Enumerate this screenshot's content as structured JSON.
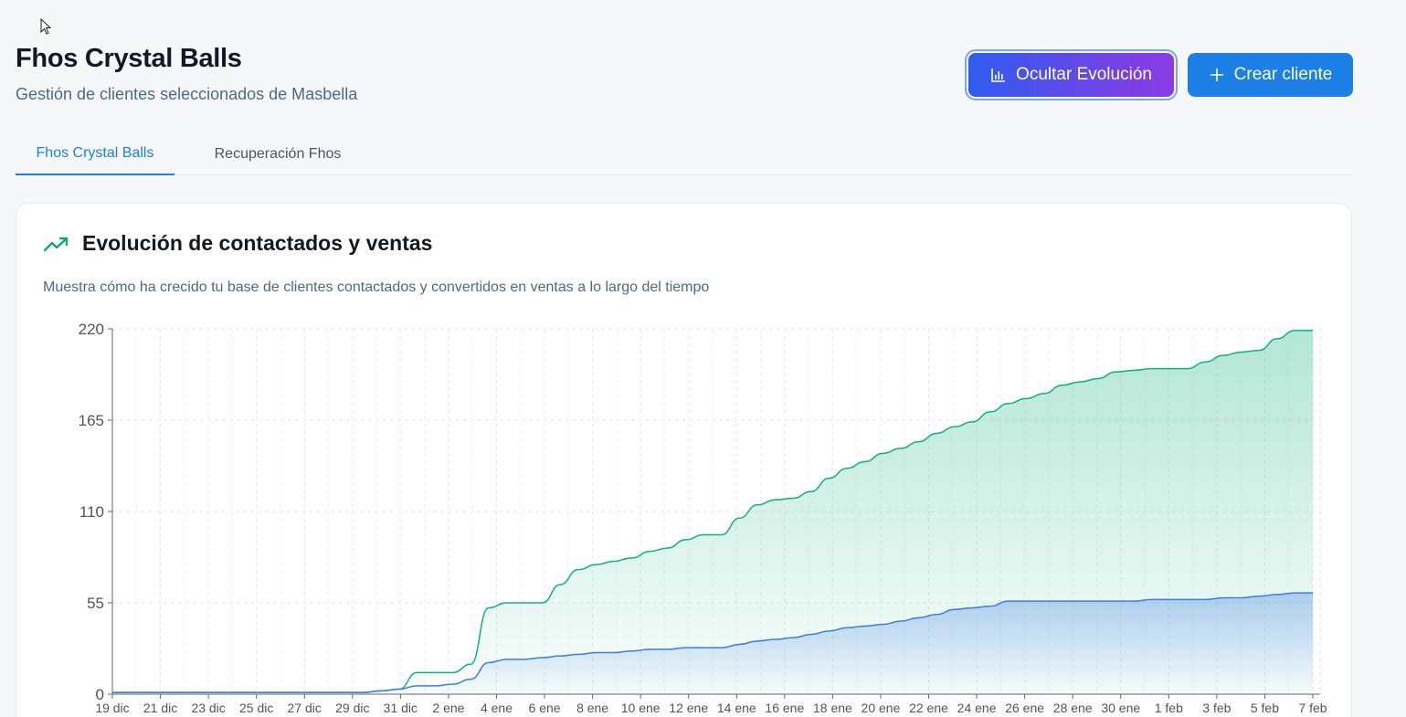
{
  "header": {
    "title": "Fhos Crystal Balls",
    "subtitle": "Gestión de clientes seleccionados de Masbella"
  },
  "actions": {
    "toggle_evolution_label": "Ocultar Evolución",
    "toggle_evolution_icon": "bar-chart-icon",
    "create_client_label": "Crear cliente",
    "create_client_icon": "plus-icon"
  },
  "tabs": [
    {
      "label": "Fhos Crystal Balls",
      "active": true
    },
    {
      "label": "Recuperación Fhos",
      "active": false
    }
  ],
  "card": {
    "title": "Evolución de contactados y ventas",
    "icon": "trending-up-icon",
    "description": "Muestra cómo ha crecido tu base de clientes contactados y convertidos en ventas a lo largo del tiempo"
  },
  "colors": {
    "accent": "#1c7fe6",
    "green_series": "#10b27a",
    "blue_series": "#3b7fe0"
  },
  "chart_data": {
    "type": "area",
    "title": "",
    "xlabel": "",
    "ylabel": "",
    "ylim": [
      0,
      220
    ],
    "yticks": [
      0,
      55,
      110,
      165,
      220
    ],
    "x_tick_labels": [
      "19 dic",
      "21 dic",
      "23 dic",
      "25 dic",
      "27 dic",
      "29 dic",
      "31 dic",
      "2 ene",
      "4 ene",
      "6 ene",
      "8 ene",
      "10 ene",
      "12 ene",
      "14 ene",
      "16 ene",
      "18 ene",
      "20 ene",
      "22 ene",
      "24 ene",
      "26 ene",
      "28 ene",
      "30 ene",
      "1 feb",
      "3 feb",
      "5 feb",
      "7 feb"
    ],
    "grid": true,
    "legend": "none",
    "series": [
      {
        "values": [
          1,
          1,
          1,
          1,
          1,
          1,
          1,
          1,
          1,
          1,
          1,
          1,
          1,
          1,
          1,
          2,
          3,
          13,
          13,
          13,
          18,
          52,
          55,
          55,
          55,
          66,
          75,
          78,
          80,
          82,
          86,
          88,
          93,
          96,
          96,
          106,
          114,
          117,
          118,
          122,
          130,
          136,
          140,
          145,
          148,
          152,
          157,
          161,
          164,
          170,
          175,
          178,
          181,
          186,
          188,
          190,
          194,
          195,
          196,
          196,
          196,
          200,
          204,
          206,
          207,
          214,
          219,
          219
        ],
        "unit": "count"
      },
      {
        "values": [
          1,
          1,
          1,
          1,
          1,
          1,
          1,
          1,
          1,
          1,
          1,
          1,
          1,
          1,
          1,
          2,
          3,
          5,
          5,
          6,
          9,
          19,
          21,
          21,
          22,
          23,
          24,
          25,
          25,
          26,
          27,
          27,
          28,
          28,
          28,
          30,
          32,
          33,
          34,
          36,
          38,
          40,
          41,
          42,
          44,
          46,
          48,
          51,
          52,
          53,
          56,
          56,
          56,
          56,
          56,
          56,
          56,
          56,
          57,
          57,
          57,
          57,
          58,
          58,
          59,
          60,
          61,
          61
        ],
        "unit": "count"
      }
    ]
  }
}
